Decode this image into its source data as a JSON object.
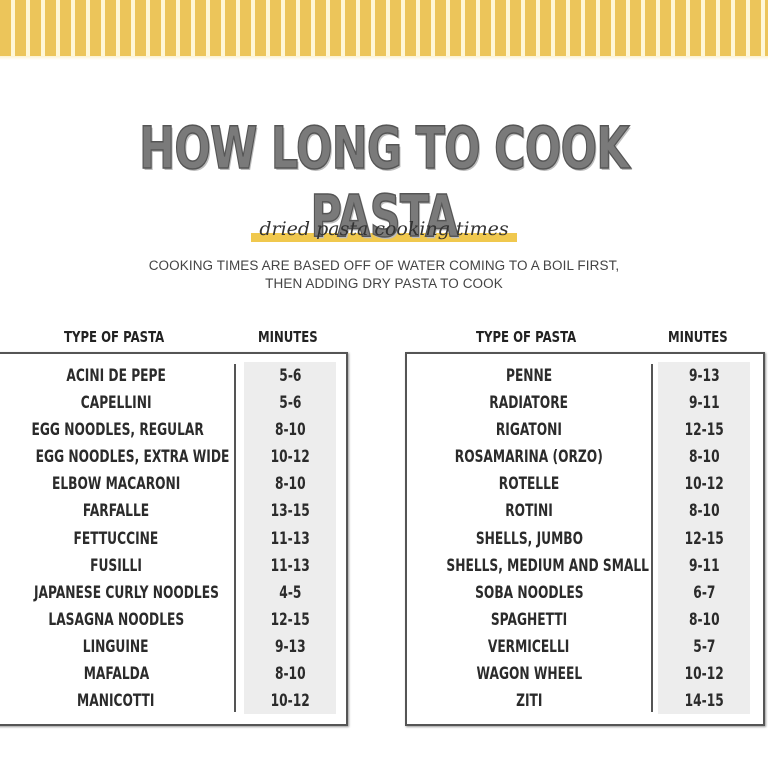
{
  "header": {
    "title": "HOW LONG TO COOK PASTA",
    "subtitle": "dried pasta cooking times",
    "note_line1": "COOKING TIMES ARE BASED OFF OF WATER COMING  TO A BOIL FIRST,",
    "note_line2": "THEN ADDING DRY PASTA TO COOK"
  },
  "colors": {
    "stripe": "#ecc55a",
    "highlight": "#f0c84e",
    "title": "#7a7a7a",
    "shade": "#ededed"
  },
  "left_table": {
    "col_type": "TYPE OF PASTA",
    "col_minutes": "MINUTES",
    "rows": [
      {
        "name": "ACINI DE PEPE",
        "minutes": "5-6"
      },
      {
        "name": "CAPELLINI",
        "minutes": "5-6"
      },
      {
        "name": "EGG NOODLES, REGULAR",
        "minutes": "8-10"
      },
      {
        "name": "EGG NOODLES, EXTRA WIDE",
        "minutes": "10-12"
      },
      {
        "name": "ELBOW MACARONI",
        "minutes": "8-10"
      },
      {
        "name": "FARFALLE",
        "minutes": "13-15"
      },
      {
        "name": "FETTUCCINE",
        "minutes": "11-13"
      },
      {
        "name": "FUSILLI",
        "minutes": "11-13"
      },
      {
        "name": "JAPANESE CURLY NOODLES",
        "minutes": "4-5"
      },
      {
        "name": "LASAGNA NOODLES",
        "minutes": "12-15"
      },
      {
        "name": "LINGUINE",
        "minutes": "9-13"
      },
      {
        "name": "MAFALDA",
        "minutes": "8-10"
      },
      {
        "name": "MANICOTTI",
        "minutes": "10-12"
      }
    ]
  },
  "right_table": {
    "col_type": "TYPE OF PASTA",
    "col_minutes": "MINUTES",
    "rows": [
      {
        "name": "PENNE",
        "minutes": "9-13"
      },
      {
        "name": "RADIATORE",
        "minutes": "9-11"
      },
      {
        "name": "RIGATONI",
        "minutes": "12-15"
      },
      {
        "name": "ROSAMARINA (ORZO)",
        "minutes": "8-10"
      },
      {
        "name": "ROTELLE",
        "minutes": "10-12"
      },
      {
        "name": "ROTINI",
        "minutes": "8-10"
      },
      {
        "name": "SHELLS, JUMBO",
        "minutes": "12-15"
      },
      {
        "name": "SHELLS, MEDIUM AND SMALL",
        "minutes": "9-11"
      },
      {
        "name": "SOBA NOODLES",
        "minutes": "6-7"
      },
      {
        "name": "SPAGHETTI",
        "minutes": "8-10"
      },
      {
        "name": "VERMICELLI",
        "minutes": "5-7"
      },
      {
        "name": "WAGON WHEEL",
        "minutes": "10-12"
      },
      {
        "name": "ZITI",
        "minutes": "14-15"
      }
    ]
  }
}
